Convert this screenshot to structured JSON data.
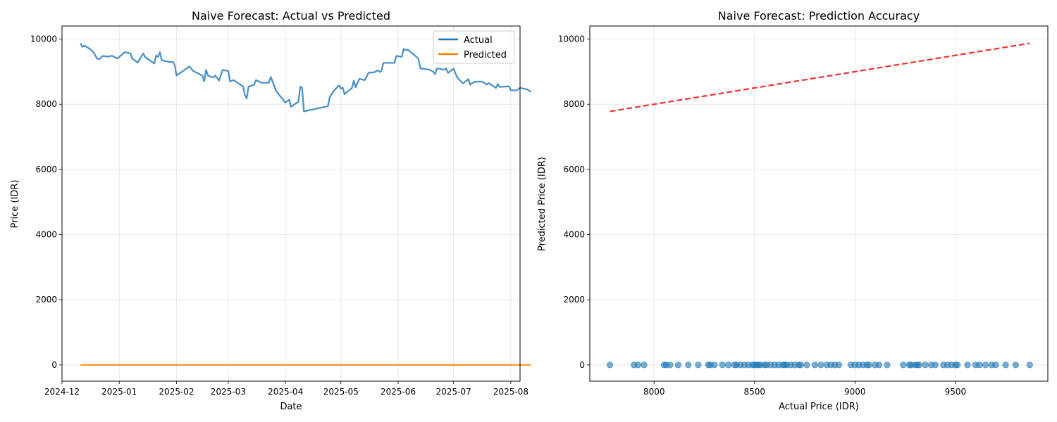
{
  "chart_data": [
    {
      "type": "line",
      "title": "Naive Forecast: Actual vs Predicted",
      "xlabel": "Date",
      "ylabel": "Price (IDR)",
      "x_ticks": [
        "2024-12",
        "2025-01",
        "2025-02",
        "2025-03",
        "2025-04",
        "2025-05",
        "2025-06",
        "2025-07",
        "2025-08"
      ],
      "y_ticks": [
        "0",
        "2000",
        "4000",
        "6000",
        "8000",
        "10000"
      ],
      "xlim": [
        "2024-12-01",
        "2025-08-06"
      ],
      "ylim": [
        -500,
        10400
      ],
      "grid": true,
      "legend_position": "top-right",
      "series": [
        {
          "name": "Actual",
          "color": "#1f77b4",
          "points": [
            [
              "2024-12-11",
              9870
            ],
            [
              "2024-12-12",
              9760
            ],
            [
              "2024-12-13",
              9800
            ],
            [
              "2024-12-16",
              9700
            ],
            [
              "2024-12-18",
              9600
            ],
            [
              "2024-12-19",
              9500
            ],
            [
              "2024-12-20",
              9400
            ],
            [
              "2024-12-21",
              9380
            ],
            [
              "2024-12-23",
              9480
            ],
            [
              "2024-12-26",
              9460
            ],
            [
              "2024-12-28",
              9490
            ],
            [
              "2024-12-31",
              9400
            ],
            [
              "2025-01-04",
              9600
            ],
            [
              "2025-01-07",
              9560
            ],
            [
              "2025-01-08",
              9400
            ],
            [
              "2025-01-11",
              9280
            ],
            [
              "2025-01-14",
              9560
            ],
            [
              "2025-01-15",
              9450
            ],
            [
              "2025-01-20",
              9250
            ],
            [
              "2025-01-21",
              9500
            ],
            [
              "2025-01-22",
              9450
            ],
            [
              "2025-01-23",
              9600
            ],
            [
              "2025-01-24",
              9350
            ],
            [
              "2025-01-28",
              9300
            ],
            [
              "2025-01-30",
              9300
            ],
            [
              "2025-01-31",
              9200
            ],
            [
              "2025-02-01",
              8880
            ],
            [
              "2025-02-08",
              9160
            ],
            [
              "2025-02-10",
              9020
            ],
            [
              "2025-02-15",
              8880
            ],
            [
              "2025-02-16",
              8700
            ],
            [
              "2025-02-17",
              9060
            ],
            [
              "2025-02-18",
              8880
            ],
            [
              "2025-02-21",
              8820
            ],
            [
              "2025-02-22",
              8880
            ],
            [
              "2025-02-24",
              8730
            ],
            [
              "2025-02-26",
              9050
            ],
            [
              "2025-03-01",
              9020
            ],
            [
              "2025-03-02",
              8700
            ],
            [
              "2025-03-04",
              8740
            ],
            [
              "2025-03-07",
              8620
            ],
            [
              "2025-03-09",
              8550
            ],
            [
              "2025-03-10",
              8280
            ],
            [
              "2025-03-11",
              8180
            ],
            [
              "2025-03-12",
              8540
            ],
            [
              "2025-03-15",
              8600
            ],
            [
              "2025-03-16",
              8740
            ],
            [
              "2025-03-19",
              8660
            ],
            [
              "2025-03-23",
              8660
            ],
            [
              "2025-03-24",
              8840
            ],
            [
              "2025-03-25",
              8700
            ],
            [
              "2025-03-27",
              8400
            ],
            [
              "2025-04-01",
              8050
            ],
            [
              "2025-04-03",
              8140
            ],
            [
              "2025-04-04",
              7920
            ],
            [
              "2025-04-07",
              8040
            ],
            [
              "2025-04-08",
              8070
            ],
            [
              "2025-04-09",
              8540
            ],
            [
              "2025-04-10",
              8500
            ],
            [
              "2025-04-11",
              7780
            ],
            [
              "2025-04-24",
              7940
            ],
            [
              "2025-04-25",
              8220
            ],
            [
              "2025-04-27",
              8400
            ],
            [
              "2025-04-30",
              8580
            ],
            [
              "2025-05-01",
              8480
            ],
            [
              "2025-05-02",
              8510
            ],
            [
              "2025-05-03",
              8310
            ],
            [
              "2025-05-07",
              8500
            ],
            [
              "2025-05-08",
              8720
            ],
            [
              "2025-05-09",
              8520
            ],
            [
              "2025-05-11",
              8780
            ],
            [
              "2025-05-14",
              8740
            ],
            [
              "2025-05-16",
              8970
            ],
            [
              "2025-05-19",
              8980
            ],
            [
              "2025-05-21",
              9040
            ],
            [
              "2025-05-22",
              8990
            ],
            [
              "2025-05-23",
              9020
            ],
            [
              "2025-05-24",
              9270
            ],
            [
              "2025-05-30",
              9270
            ],
            [
              "2025-05-31",
              9480
            ],
            [
              "2025-06-03",
              9460
            ],
            [
              "2025-06-04",
              9700
            ],
            [
              "2025-06-05",
              9660
            ],
            [
              "2025-06-06",
              9680
            ],
            [
              "2025-06-10",
              9500
            ],
            [
              "2025-06-12",
              9400
            ],
            [
              "2025-06-13",
              9100
            ],
            [
              "2025-06-18",
              9060
            ],
            [
              "2025-06-20",
              9000
            ],
            [
              "2025-06-21",
              8920
            ],
            [
              "2025-06-22",
              9100
            ],
            [
              "2025-06-26",
              9060
            ],
            [
              "2025-06-27",
              9100
            ],
            [
              "2025-06-28",
              8960
            ],
            [
              "2025-07-01",
              9090
            ],
            [
              "2025-07-03",
              8820
            ],
            [
              "2025-07-06",
              8640
            ],
            [
              "2025-07-08",
              8720
            ],
            [
              "2025-07-09",
              8770
            ],
            [
              "2025-07-10",
              8600
            ],
            [
              "2025-07-12",
              8680
            ],
            [
              "2025-07-15",
              8700
            ],
            [
              "2025-07-17",
              8680
            ],
            [
              "2025-07-19",
              8600
            ],
            [
              "2025-07-20",
              8650
            ],
            [
              "2025-07-24",
              8500
            ],
            [
              "2025-07-25",
              8620
            ],
            [
              "2025-07-26",
              8530
            ],
            [
              "2025-07-31",
              8550
            ],
            [
              "2025-08-01",
              8430
            ],
            [
              "2025-08-04",
              8420
            ],
            [
              "2025-08-06",
              8500
            ],
            [
              "2025-08-08",
              8480
            ],
            [
              "2025-08-10",
              8450
            ],
            [
              "2025-08-12",
              8380
            ]
          ]
        },
        {
          "name": "Predicted",
          "color": "#ff7f0e",
          "points": [
            [
              "2024-12-11",
              0
            ],
            [
              "2025-08-12",
              0
            ]
          ]
        }
      ]
    },
    {
      "type": "scatter",
      "title": "Naive Forecast: Prediction Accuracy",
      "xlabel": "Actual Price (IDR)",
      "ylabel": "Predicted Price (IDR)",
      "x_ticks": [
        "8000",
        "8500",
        "9000",
        "9500"
      ],
      "y_ticks": [
        "0",
        "2000",
        "4000",
        "6000",
        "8000",
        "10000"
      ],
      "xlim": [
        7680,
        9960
      ],
      "ylim": [
        -500,
        10400
      ],
      "grid": true,
      "point_color": "#1f77b4",
      "reference_line": {
        "color": "#ee2222",
        "from": [
          7780,
          7780
        ],
        "to": [
          9870,
          9870
        ]
      },
      "x": [
        7780,
        7900,
        7920,
        7950,
        8050,
        8060,
        8080,
        8120,
        8170,
        8220,
        8270,
        8280,
        8300,
        8340,
        8370,
        8400,
        8410,
        8430,
        8450,
        8470,
        8490,
        8500,
        8510,
        8520,
        8530,
        8550,
        8560,
        8580,
        8600,
        8620,
        8640,
        8650,
        8660,
        8680,
        8700,
        8720,
        8730,
        8760,
        8800,
        8830,
        8860,
        8880,
        8900,
        8920,
        8980,
        9000,
        9020,
        9040,
        9060,
        9070,
        9100,
        9120,
        9160,
        9240,
        9270,
        9280,
        9300,
        9310,
        9320,
        9350,
        9380,
        9400,
        9440,
        9460,
        9480,
        9500,
        9510,
        9560,
        9600,
        9620,
        9650,
        9680,
        9700,
        9750,
        9800,
        9870
      ],
      "y": [
        0,
        0,
        0,
        0,
        0,
        0,
        0,
        0,
        0,
        0,
        0,
        0,
        0,
        0,
        0,
        0,
        0,
        0,
        0,
        0,
        0,
        0,
        0,
        0,
        0,
        0,
        0,
        0,
        0,
        0,
        0,
        0,
        0,
        0,
        0,
        0,
        0,
        0,
        0,
        0,
        0,
        0,
        0,
        0,
        0,
        0,
        0,
        0,
        0,
        0,
        0,
        0,
        0,
        0,
        0,
        0,
        0,
        0,
        0,
        0,
        0,
        0,
        0,
        0,
        0,
        0,
        0,
        0,
        0,
        0,
        0,
        0,
        0,
        0,
        0,
        0
      ]
    }
  ]
}
